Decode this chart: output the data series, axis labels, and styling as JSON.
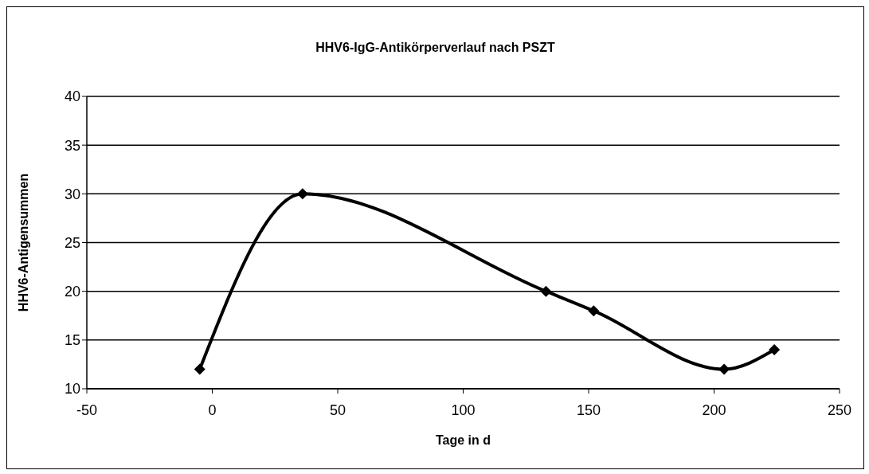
{
  "chart_data": {
    "type": "line",
    "title": "HHV6-IgG-Antikörperverlauf nach PSZT",
    "xlabel": "Tage in d",
    "ylabel": "HHV6-Antigensummen",
    "x": [
      -5,
      36,
      133,
      152,
      204,
      224
    ],
    "series": [
      {
        "color": "#000000",
        "values": [
          12,
          30,
          20,
          18,
          12,
          14
        ]
      }
    ],
    "xlim": [
      -50,
      250
    ],
    "xticks": [
      -50,
      0,
      50,
      100,
      150,
      200,
      250
    ],
    "ylim": [
      10,
      40
    ],
    "yticks": [
      10,
      15,
      20,
      25,
      30,
      35,
      40
    ],
    "grid": "y",
    "marker": "diamond",
    "line_style": "solid"
  }
}
